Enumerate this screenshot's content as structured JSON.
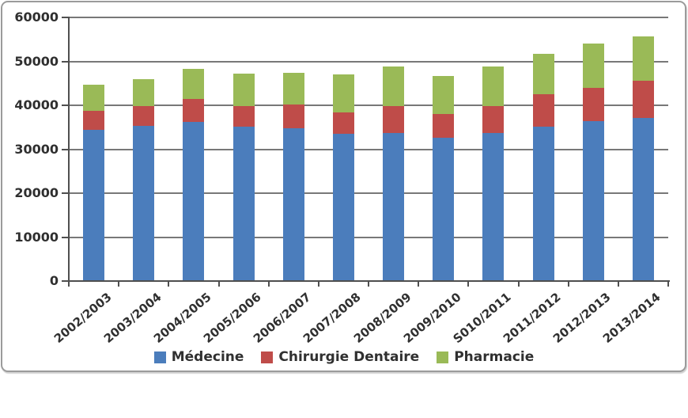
{
  "frame": {
    "border_color": "#9b9b9b",
    "background": "#ffffff"
  },
  "chart_data": {
    "type": "bar",
    "stacked": true,
    "title": "",
    "xlabel": "",
    "ylabel": "",
    "categories": [
      "2002/2003",
      "2003/2004",
      "2004/2005",
      "2005/2006",
      "2006/2007",
      "2007/2008",
      "2008/2009",
      "2009/2010",
      "S010/2011",
      "2011/2012",
      "2012/2013",
      "2013/2014"
    ],
    "series": [
      {
        "name": "Médecine",
        "color": "#4b7dbc",
        "values": [
          34500,
          35400,
          36300,
          35200,
          34800,
          33600,
          33700,
          32600,
          33700,
          35100,
          36400,
          37100
        ]
      },
      {
        "name": "Chirurgie Dentaire",
        "color": "#bf4c49",
        "values": [
          4300,
          4400,
          5200,
          4600,
          5300,
          4800,
          6200,
          5500,
          6200,
          7400,
          7500,
          8500
        ]
      },
      {
        "name": "Pharmacie",
        "color": "#9aba57",
        "values": [
          5900,
          6200,
          6800,
          7400,
          7300,
          8700,
          9000,
          8600,
          8900,
          9300,
          10100,
          10000
        ]
      }
    ],
    "stack_totals": [
      44700,
      46000,
      48300,
      47200,
      47400,
      47100,
      48900,
      46700,
      48800,
      51800,
      54000,
      55600
    ],
    "ylim": [
      0,
      60000
    ],
    "ytick_step": 10000,
    "ytick_labels": [
      "0",
      "10000",
      "20000",
      "30000",
      "40000",
      "50000",
      "60000"
    ],
    "grid": true,
    "gridline_color": "#787878",
    "axis_color": "#4f4f4f",
    "tick_label_color": "#2f2f2f",
    "legend_position": "bottom"
  }
}
